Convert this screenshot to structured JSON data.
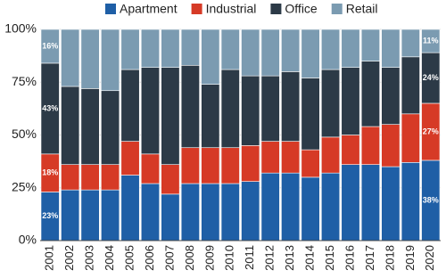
{
  "chart_data": {
    "type": "stacked-bar",
    "categories": [
      "2001",
      "2002",
      "2003",
      "2004",
      "2005",
      "2006",
      "2007",
      "2008",
      "2009",
      "2010",
      "2011",
      "2012",
      "2013",
      "2014",
      "2015",
      "2016",
      "2017",
      "2018",
      "2019",
      "2020"
    ],
    "series": [
      {
        "name": "Apartment",
        "color": "#1f5fa6",
        "values": [
          23,
          24,
          24,
          24,
          31,
          27,
          22,
          27,
          27,
          27,
          28,
          32,
          32,
          30,
          32,
          36,
          36,
          35,
          37,
          38
        ],
        "value_labels": [
          "23%",
          null,
          null,
          null,
          null,
          null,
          null,
          null,
          null,
          null,
          null,
          null,
          null,
          null,
          null,
          null,
          null,
          null,
          null,
          "38%"
        ]
      },
      {
        "name": "Industrial",
        "color": "#d63a26",
        "values": [
          18,
          12,
          12,
          12,
          16,
          14,
          14,
          17,
          17,
          17,
          17,
          15,
          15,
          13,
          17,
          14,
          18,
          20,
          23,
          27
        ],
        "value_labels": [
          "18%",
          null,
          null,
          null,
          null,
          null,
          null,
          null,
          null,
          null,
          null,
          null,
          null,
          null,
          null,
          null,
          null,
          null,
          null,
          "27%"
        ]
      },
      {
        "name": "Office",
        "color": "#2c3a47",
        "values": [
          43,
          37,
          36,
          35,
          34,
          41,
          46,
          39,
          30,
          37,
          33,
          31,
          33,
          34,
          32,
          32,
          31,
          27,
          27,
          24
        ],
        "value_labels": [
          "43%",
          null,
          null,
          null,
          null,
          null,
          null,
          null,
          null,
          null,
          null,
          null,
          null,
          null,
          null,
          null,
          null,
          null,
          null,
          "24%"
        ]
      },
      {
        "name": "Retail",
        "color": "#7b9bb1",
        "values": [
          16,
          27,
          28,
          29,
          19,
          18,
          18,
          17,
          26,
          19,
          22,
          22,
          20,
          23,
          19,
          18,
          15,
          18,
          13,
          11
        ],
        "value_labels": [
          "16%",
          null,
          null,
          null,
          null,
          null,
          null,
          null,
          null,
          null,
          null,
          null,
          null,
          null,
          null,
          null,
          null,
          null,
          null,
          "11%"
        ]
      }
    ],
    "ylim": [
      0,
      100
    ],
    "yticks": [
      {
        "value": 0,
        "label": "0%"
      },
      {
        "value": 25,
        "label": "25%"
      },
      {
        "value": 50,
        "label": "50%"
      },
      {
        "value": 75,
        "label": "75%"
      },
      {
        "value": 100,
        "label": "100%"
      }
    ],
    "grid": true,
    "legend": "top"
  }
}
